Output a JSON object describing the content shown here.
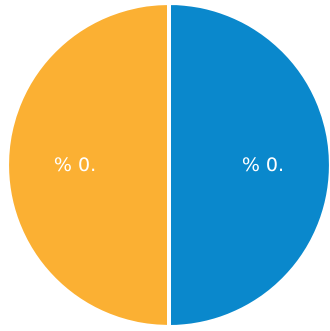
{
  "chart_data": {
    "type": "pie",
    "categories": [
      "",
      ""
    ],
    "values": [
      50,
      50
    ],
    "labels": [
      "% 0.",
      "% 0."
    ],
    "colors": [
      "#0a88cc",
      "#fbb033"
    ],
    "start_angle_deg": 0,
    "direction": "clockwise",
    "legend": "none"
  }
}
